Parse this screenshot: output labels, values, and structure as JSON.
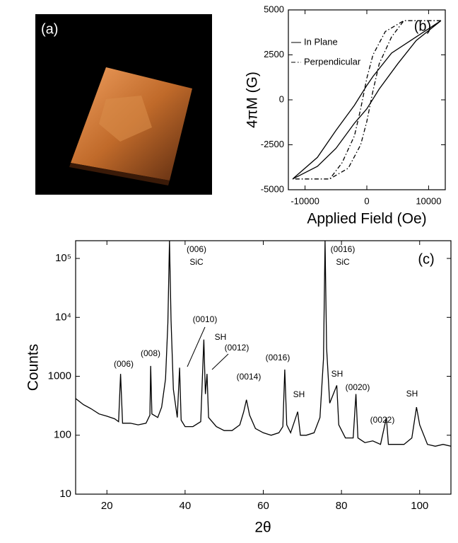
{
  "image_panel": {
    "label": "(a)"
  },
  "chart_data": [
    {
      "type": "line",
      "label": "(b)",
      "y_title": "4πM (G)",
      "x_title": "Applied Field (Oe)",
      "xlim": [
        -12700,
        12700
      ],
      "ylim": [
        -5000,
        5000
      ],
      "xticks": [
        -10000,
        0,
        10000
      ],
      "yticks": [
        5000,
        2500,
        0,
        -2500,
        -5000
      ],
      "series": [
        {
          "name": "In Plane",
          "color": "#000000",
          "dash": "solid",
          "x": [
            12000,
            8000,
            4000,
            1000,
            0,
            -2000,
            -5000,
            -8000,
            -12000,
            -8000,
            -5000,
            -2000,
            0,
            2000,
            5000,
            8000,
            12000
          ],
          "values": [
            4400,
            3500,
            2600,
            1300,
            800,
            -300,
            -1700,
            -3200,
            -4400,
            -3700,
            -2700,
            -1300,
            -500,
            600,
            2000,
            3300,
            4400
          ]
        },
        {
          "name": "Perpendicular",
          "color": "#000000",
          "dash": "dashdot",
          "x": [
            12000,
            6000,
            3000,
            1000,
            0,
            -1000,
            -2000,
            -4000,
            -6000,
            -12000,
            -6000,
            -3000,
            -1000,
            0,
            1000,
            2000,
            4000,
            6000,
            12000
          ],
          "values": [
            4400,
            4400,
            3800,
            2500,
            1200,
            -500,
            -2000,
            -3500,
            -4400,
            -4400,
            -4400,
            -3800,
            -2500,
            -1200,
            500,
            2000,
            3500,
            4400,
            4400
          ]
        }
      ]
    },
    {
      "type": "line",
      "label": "(c)",
      "y_title": "Counts",
      "x_title": "2θ",
      "log_y": true,
      "xlim": [
        12,
        108
      ],
      "ylim": [
        10,
        200000
      ],
      "xticks": [
        20,
        40,
        60,
        80,
        100
      ],
      "yticks": [
        10,
        100,
        1000,
        {
          "value": 10000,
          "label": "10⁴"
        },
        {
          "value": 100000,
          "label": "10⁵"
        }
      ],
      "annotations": [
        "(006)",
        "(008)",
        "(0010)",
        "SH",
        "(0012)",
        "(0014)",
        "(0016)",
        "SH",
        "SH",
        "(0020)",
        "(0022)",
        "SH",
        "(006)",
        "SiC",
        "(0016)",
        "SiC"
      ],
      "series": [
        {
          "color": "#000000",
          "dash": "solid",
          "x": [
            12,
            14,
            16,
            18,
            20,
            22,
            23,
            23.5,
            24,
            26,
            28,
            30,
            31,
            31.2,
            31.5,
            33,
            34,
            35,
            35.6,
            36,
            36.4,
            37,
            38,
            38.6,
            39,
            40,
            42,
            44,
            44.8,
            45.2,
            45.6,
            46,
            48,
            50,
            52,
            54,
            55,
            55.7,
            56.5,
            58,
            60,
            62,
            64,
            65,
            65.5,
            66,
            67,
            68.8,
            69.5,
            71,
            73,
            74.5,
            75.4,
            75.8,
            76.2,
            77,
            78.8,
            79.3,
            81,
            83,
            83.7,
            84.2,
            86,
            88,
            90,
            91.5,
            92,
            94,
            96,
            98,
            99.2,
            100,
            102,
            104,
            106,
            108
          ],
          "values": [
            420,
            330,
            280,
            230,
            210,
            190,
            170,
            1100,
            160,
            160,
            150,
            160,
            220,
            1500,
            230,
            200,
            300,
            900,
            8000,
            200000,
            9000,
            600,
            200,
            1400,
            180,
            140,
            140,
            170,
            4200,
            500,
            1100,
            200,
            140,
            120,
            120,
            150,
            250,
            400,
            220,
            130,
            110,
            100,
            110,
            140,
            1300,
            150,
            110,
            250,
            100,
            100,
            110,
            200,
            2000,
            200000,
            3000,
            350,
            700,
            150,
            90,
            90,
            500,
            90,
            75,
            80,
            70,
            200,
            70,
            70,
            70,
            90,
            300,
            150,
            70,
            65,
            70,
            65
          ]
        }
      ]
    }
  ]
}
